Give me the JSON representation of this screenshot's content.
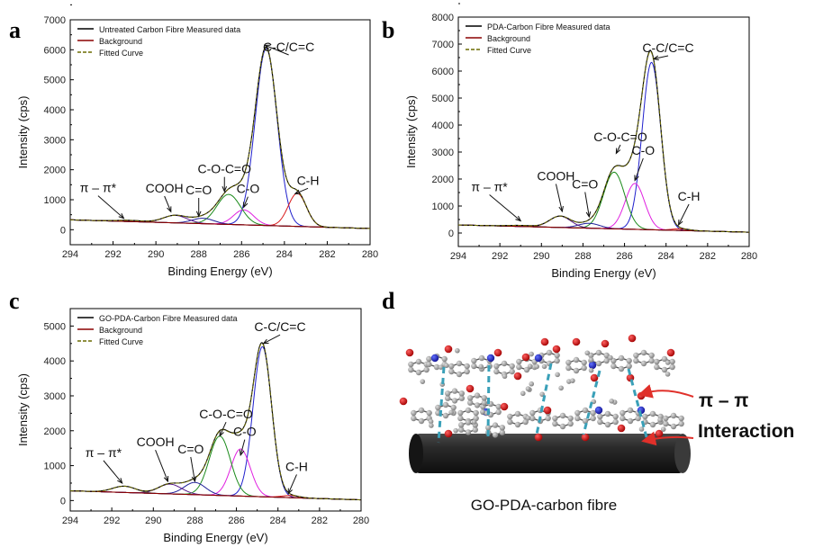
{
  "figure": {
    "panels": [
      "a",
      "b",
      "c",
      "d"
    ],
    "caption_d": "GO-PDA-carbon fibre",
    "interaction_label_1": "π – π",
    "interaction_label_2": "Interaction"
  },
  "colors": {
    "measured": "#000000",
    "background": "#8b0000",
    "fitted": "#6b6b00",
    "cc": "#1f1fcc",
    "ch": "#d91a1a",
    "co": "#e020e0",
    "coc": "#1a8a1a",
    "ceo": "#20209a",
    "cooh": "#5a1a8a",
    "pipi": "#555555",
    "fibre": "#2a2a2a",
    "dash": "#3aa0b8",
    "arrow": "#e0302a"
  },
  "chart_data": [
    {
      "type": "line",
      "panel": "a",
      "xlabel": "Binding Energy (eV)",
      "ylabel": "Intensity (cps)",
      "xlim": [
        294,
        280
      ],
      "ylim": [
        -500,
        7000
      ],
      "xticks": [
        294,
        292,
        290,
        288,
        286,
        284,
        282,
        280
      ],
      "yticks": [
        0,
        1000,
        2000,
        3000,
        4000,
        5000,
        6000,
        7000
      ],
      "legend": [
        "Untreated Carbon Fibre Measured data",
        "Background",
        "Fitted Curve"
      ],
      "background": {
        "x_high": 294,
        "y_high": 330,
        "x_low": 280,
        "y_low": 40
      },
      "peaks": [
        {
          "name": "C-C/C=C",
          "center": 284.85,
          "amp": 5900,
          "fwhm": 1.2,
          "color_key": "cc"
        },
        {
          "name": "C-H",
          "center": 283.4,
          "amp": 1100,
          "fwhm": 1.0,
          "color_key": "ch"
        },
        {
          "name": "C-O",
          "center": 285.9,
          "amp": 500,
          "fwhm": 1.1,
          "color_key": "co"
        },
        {
          "name": "C-O-C=O",
          "center": 286.6,
          "amp": 1000,
          "fwhm": 1.3,
          "color_key": "coc"
        },
        {
          "name": "C=O",
          "center": 287.8,
          "amp": 180,
          "fwhm": 1.2,
          "color_key": "ceo"
        },
        {
          "name": "COOH",
          "center": 289.1,
          "amp": 250,
          "fwhm": 1.3,
          "color_key": "cooh"
        },
        {
          "name": "π – π*",
          "center": 291.2,
          "amp": 40,
          "fwhm": 1.5,
          "color_key": "pipi"
        }
      ],
      "annotations": [
        {
          "text": "C-C/C=C",
          "x": 283.8,
          "y": 5950,
          "ax": 284.9,
          "ay": 6150
        },
        {
          "text": "C-H",
          "x": 282.9,
          "y": 1500,
          "ax": 283.5,
          "ay": 1200
        },
        {
          "text": "C-O",
          "x": 285.7,
          "y": 1220,
          "ax": 285.9,
          "ay": 750
        },
        {
          "text": "C-O-C=O",
          "x": 286.8,
          "y": 1880,
          "ax": 286.8,
          "ay": 1280
        },
        {
          "text": "C=O",
          "x": 288.0,
          "y": 1180,
          "ax": 288.0,
          "ay": 450
        },
        {
          "text": "COOH",
          "x": 289.6,
          "y": 1240,
          "ax": 289.3,
          "ay": 600
        },
        {
          "text": "π – π*",
          "x": 292.7,
          "y": 1250,
          "ax": 291.5,
          "ay": 380
        }
      ]
    },
    {
      "type": "line",
      "panel": "b",
      "xlabel": "Binding Energy (eV)",
      "ylabel": "Intensity (cps)",
      "xlim": [
        294,
        280
      ],
      "ylim": [
        -500,
        8000
      ],
      "xticks": [
        294,
        292,
        290,
        288,
        286,
        284,
        282,
        280
      ],
      "yticks": [
        0,
        1000,
        2000,
        3000,
        4000,
        5000,
        6000,
        7000,
        8000
      ],
      "legend": [
        "PDA-Carbon Fibre Measured data",
        "Background",
        "Fitted Curve"
      ],
      "background": {
        "x_high": 294,
        "y_high": 300,
        "x_low": 280,
        "y_low": 30
      },
      "peaks": [
        {
          "name": "C-C/C=C",
          "center": 284.7,
          "amp": 6200,
          "fwhm": 1.05,
          "color_key": "cc"
        },
        {
          "name": "C-H",
          "center": 283.3,
          "amp": 60,
          "fwhm": 1.0,
          "color_key": "ch"
        },
        {
          "name": "C-O",
          "center": 285.5,
          "amp": 1700,
          "fwhm": 1.1,
          "color_key": "co"
        },
        {
          "name": "C-O-C=O",
          "center": 286.5,
          "amp": 2100,
          "fwhm": 1.2,
          "color_key": "coc"
        },
        {
          "name": "C=O",
          "center": 287.7,
          "amp": 180,
          "fwhm": 1.2,
          "color_key": "ceo"
        },
        {
          "name": "COOH",
          "center": 289.1,
          "amp": 420,
          "fwhm": 1.2,
          "color_key": "cooh"
        },
        {
          "name": "π – π*",
          "center": 291.0,
          "amp": 40,
          "fwhm": 1.5,
          "color_key": "pipi"
        }
      ],
      "annotations": [
        {
          "text": "C-C/C=C",
          "x": 283.9,
          "y": 6700,
          "ax": 284.6,
          "ay": 6450
        },
        {
          "text": "C-H",
          "x": 282.9,
          "y": 1200,
          "ax": 283.4,
          "ay": 300
        },
        {
          "text": "C-O",
          "x": 285.1,
          "y": 2900,
          "ax": 285.5,
          "ay": 1950
        },
        {
          "text": "C-O-C=O",
          "x": 286.2,
          "y": 3400,
          "ax": 286.4,
          "ay": 2950
        },
        {
          "text": "C=O",
          "x": 287.9,
          "y": 1650,
          "ax": 287.7,
          "ay": 600
        },
        {
          "text": "COOH",
          "x": 289.3,
          "y": 1950,
          "ax": 289.0,
          "ay": 800
        },
        {
          "text": "π – π*",
          "x": 292.5,
          "y": 1550,
          "ax": 291.0,
          "ay": 450
        }
      ]
    },
    {
      "type": "line",
      "panel": "c",
      "xlabel": "Binding Energy (eV)",
      "ylabel": "Intensity (cps)",
      "xlim": [
        294,
        280
      ],
      "ylim": [
        -300,
        5500
      ],
      "xticks": [
        294,
        292,
        290,
        288,
        286,
        284,
        282,
        280
      ],
      "yticks": [
        0,
        1000,
        2000,
        3000,
        4000,
        5000
      ],
      "legend": [
        "GO-PDA-Carbon Fibre Measured data",
        "Background",
        "Fitted Curve"
      ],
      "background": {
        "x_high": 294,
        "y_high": 280,
        "x_low": 280,
        "y_low": 20
      },
      "peaks": [
        {
          "name": "C-C/C=C",
          "center": 284.75,
          "amp": 4300,
          "fwhm": 1.05,
          "color_key": "cc"
        },
        {
          "name": "C-H",
          "center": 283.4,
          "amp": 60,
          "fwhm": 1.0,
          "color_key": "ch"
        },
        {
          "name": "C-O",
          "center": 285.8,
          "amp": 1350,
          "fwhm": 1.1,
          "color_key": "co"
        },
        {
          "name": "C-O-C=O",
          "center": 286.8,
          "amp": 1700,
          "fwhm": 1.2,
          "color_key": "coc"
        },
        {
          "name": "C=O",
          "center": 288.0,
          "amp": 350,
          "fwhm": 1.2,
          "color_key": "ceo"
        },
        {
          "name": "COOH",
          "center": 289.2,
          "amp": 280,
          "fwhm": 1.3,
          "color_key": "cooh"
        },
        {
          "name": "π – π*",
          "center": 291.4,
          "amp": 180,
          "fwhm": 1.3,
          "color_key": "pipi"
        }
      ],
      "annotations": [
        {
          "text": "C-C/C=C",
          "x": 283.9,
          "y": 4850,
          "ax": 284.7,
          "ay": 4500
        },
        {
          "text": "C-H",
          "x": 283.1,
          "y": 850,
          "ax": 283.5,
          "ay": 200
        },
        {
          "text": "C-O",
          "x": 285.6,
          "y": 1850,
          "ax": 285.8,
          "ay": 1300
        },
        {
          "text": "C-O-C=O",
          "x": 286.5,
          "y": 2350,
          "ax": 286.8,
          "ay": 1850
        },
        {
          "text": "C=O",
          "x": 288.2,
          "y": 1350,
          "ax": 288.0,
          "ay": 550
        },
        {
          "text": "COOH",
          "x": 289.9,
          "y": 1550,
          "ax": 289.3,
          "ay": 550
        },
        {
          "text": "π – π*",
          "x": 292.4,
          "y": 1250,
          "ax": 291.5,
          "ay": 500
        }
      ]
    }
  ]
}
